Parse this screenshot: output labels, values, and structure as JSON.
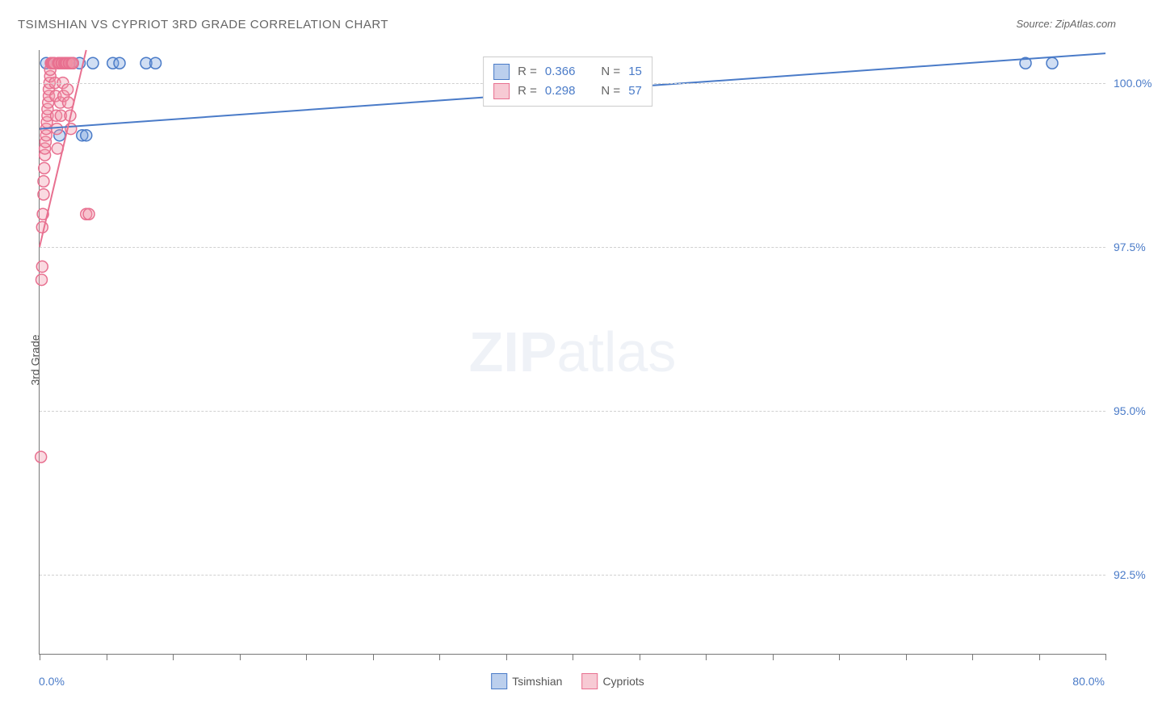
{
  "title": "TSIMSHIAN VS CYPRIOT 3RD GRADE CORRELATION CHART",
  "source": "Source: ZipAtlas.com",
  "watermark_bold": "ZIP",
  "watermark_light": "atlas",
  "yaxis_title": "3rd Grade",
  "chart": {
    "type": "scatter",
    "background_color": "#ffffff",
    "grid_color": "#d0d0d0",
    "axis_color": "#777777",
    "value_color": "#4a7bc8",
    "xlim": [
      0,
      80
    ],
    "ylim": [
      91.3,
      100.5
    ],
    "x_tick_positions": [
      0,
      5,
      10,
      15,
      20,
      25,
      30,
      35,
      40,
      45,
      50,
      55,
      60,
      65,
      70,
      75,
      80
    ],
    "y_gridlines": [
      92.5,
      95.0,
      97.5,
      100.0
    ],
    "y_tick_labels": [
      "92.5%",
      "95.0%",
      "97.5%",
      "100.0%"
    ],
    "x_min_label": "0.0%",
    "x_max_label": "80.0%",
    "marker_radius": 7,
    "marker_stroke_width": 1.5,
    "trend_line_width": 2,
    "series": [
      {
        "name": "Tsimshian",
        "color_fill": "rgba(120,160,220,0.35)",
        "color_stroke": "#4a7bc8",
        "points": [
          [
            0.5,
            100.3
          ],
          [
            1.0,
            100.3
          ],
          [
            1.5,
            99.2
          ],
          [
            2.0,
            100.3
          ],
          [
            2.5,
            100.3
          ],
          [
            3.0,
            100.3
          ],
          [
            3.2,
            99.2
          ],
          [
            3.5,
            99.2
          ],
          [
            4.0,
            100.3
          ],
          [
            5.5,
            100.3
          ],
          [
            6.0,
            100.3
          ],
          [
            8.0,
            100.3
          ],
          [
            8.7,
            100.3
          ],
          [
            74.0,
            100.3
          ],
          [
            76.0,
            100.3
          ]
        ],
        "trend": {
          "x1": 0,
          "y1": 99.3,
          "x2": 80,
          "y2": 100.45
        },
        "R": "0.366",
        "N": "15"
      },
      {
        "name": "Cypriots",
        "color_fill": "rgba(240,150,170,0.35)",
        "color_stroke": "#e87090",
        "points": [
          [
            0.1,
            94.3
          ],
          [
            0.15,
            97.0
          ],
          [
            0.2,
            97.2
          ],
          [
            0.2,
            97.8
          ],
          [
            0.25,
            98.0
          ],
          [
            0.3,
            98.3
          ],
          [
            0.3,
            98.5
          ],
          [
            0.35,
            98.7
          ],
          [
            0.4,
            98.9
          ],
          [
            0.4,
            99.0
          ],
          [
            0.45,
            99.1
          ],
          [
            0.5,
            99.2
          ],
          [
            0.5,
            99.3
          ],
          [
            0.55,
            99.4
          ],
          [
            0.6,
            99.5
          ],
          [
            0.6,
            99.6
          ],
          [
            0.65,
            99.7
          ],
          [
            0.7,
            99.8
          ],
          [
            0.7,
            99.9
          ],
          [
            0.75,
            100.0
          ],
          [
            0.8,
            100.1
          ],
          [
            0.8,
            100.2
          ],
          [
            0.85,
            100.3
          ],
          [
            0.9,
            100.3
          ],
          [
            0.95,
            100.3
          ],
          [
            1.0,
            100.3
          ],
          [
            1.05,
            100.3
          ],
          [
            1.1,
            100.3
          ],
          [
            1.15,
            100.0
          ],
          [
            1.2,
            99.8
          ],
          [
            1.25,
            99.5
          ],
          [
            1.3,
            99.3
          ],
          [
            1.35,
            99.0
          ],
          [
            1.4,
            100.3
          ],
          [
            1.45,
            100.3
          ],
          [
            1.5,
            100.3
          ],
          [
            1.55,
            99.7
          ],
          [
            1.6,
            99.5
          ],
          [
            1.65,
            100.3
          ],
          [
            1.7,
            100.3
          ],
          [
            1.75,
            100.0
          ],
          [
            1.8,
            99.8
          ],
          [
            1.85,
            100.3
          ],
          [
            1.9,
            100.3
          ],
          [
            1.95,
            100.3
          ],
          [
            2.0,
            100.3
          ],
          [
            2.05,
            100.3
          ],
          [
            2.1,
            99.9
          ],
          [
            2.15,
            99.7
          ],
          [
            2.2,
            100.3
          ],
          [
            2.25,
            100.3
          ],
          [
            2.3,
            99.5
          ],
          [
            2.35,
            99.3
          ],
          [
            2.4,
            100.3
          ],
          [
            2.5,
            100.3
          ],
          [
            3.5,
            98.0
          ],
          [
            3.7,
            98.0
          ]
        ],
        "trend": {
          "x1": 0,
          "y1": 97.5,
          "x2": 3.5,
          "y2": 100.5
        },
        "R": "0.298",
        "N": "57"
      }
    ]
  },
  "legend": {
    "r_label": "R =",
    "n_label": "N ="
  },
  "bottom_legend": {
    "label1": "Tsimshian",
    "label2": "Cypriots"
  }
}
